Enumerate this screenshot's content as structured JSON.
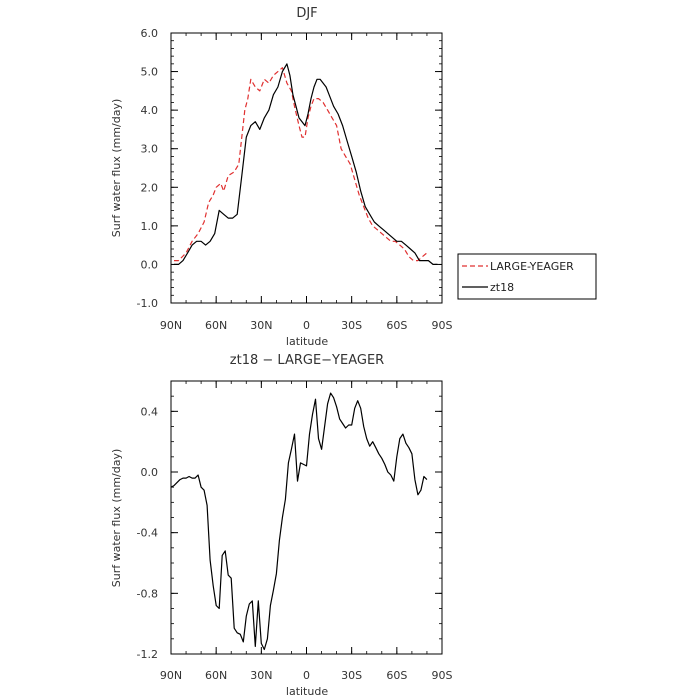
{
  "chart_data": [
    {
      "type": "line",
      "title": "DJF",
      "xlabel": "latitude",
      "ylabel": "Surf water flux (mm/day)",
      "xlim": [
        90,
        -90
      ],
      "ylim": [
        -1.0,
        6.0
      ],
      "x_ticks": [
        "90N",
        "60N",
        "30N",
        "0",
        "30S",
        "60S",
        "90S"
      ],
      "y_ticks": [
        "-1.0",
        "0.0",
        "1.0",
        "2.0",
        "3.0",
        "4.0",
        "5.0",
        "6.0"
      ],
      "legend_position": "right",
      "series": [
        {
          "name": "LARGE-YEAGER",
          "color": "#e03030",
          "dash": "dashed",
          "x": [
            88,
            85,
            80,
            76,
            72,
            68,
            65,
            62,
            60,
            57,
            55,
            52,
            48,
            45,
            43,
            41,
            39,
            37,
            34,
            31,
            28,
            25,
            22,
            19,
            16,
            13,
            10,
            8,
            5,
            3,
            1,
            -1,
            -3,
            -5,
            -8,
            -11,
            -14,
            -17,
            -20,
            -23,
            -26,
            -29,
            -32,
            -35,
            -38,
            -41,
            -44,
            -47,
            -50,
            -53,
            -56,
            -59,
            -62,
            -65,
            -68,
            -71,
            -74,
            -77,
            -80
          ],
          "y": [
            0.1,
            0.1,
            0.3,
            0.6,
            0.8,
            1.1,
            1.6,
            1.8,
            2.0,
            2.1,
            1.9,
            2.3,
            2.4,
            2.6,
            3.3,
            4.0,
            4.3,
            4.8,
            4.6,
            4.5,
            4.8,
            4.7,
            4.9,
            5.0,
            5.1,
            4.7,
            4.5,
            4.1,
            3.6,
            3.3,
            3.3,
            3.8,
            4.1,
            4.3,
            4.3,
            4.2,
            4.0,
            3.8,
            3.6,
            3.0,
            2.8,
            2.6,
            2.2,
            1.8,
            1.5,
            1.2,
            1.0,
            0.9,
            0.8,
            0.7,
            0.6,
            0.6,
            0.5,
            0.4,
            0.2,
            0.1,
            0.1,
            0.2,
            0.3
          ]
        },
        {
          "name": "zt18",
          "color": "#000000",
          "dash": "solid",
          "x": [
            88,
            85,
            82,
            79,
            76,
            73,
            70,
            67,
            64,
            61,
            58,
            55,
            52,
            49,
            46,
            43,
            40,
            37,
            34,
            31,
            28,
            25,
            22,
            19,
            16,
            13,
            11,
            9,
            7,
            5,
            3,
            1,
            -1,
            -3,
            -5,
            -7,
            -9,
            -11,
            -13,
            -15,
            -18,
            -21,
            -24,
            -27,
            -30,
            -33,
            -36,
            -39,
            -42,
            -45,
            -48,
            -51,
            -54,
            -57,
            -60,
            -63,
            -66,
            -69,
            -72,
            -75,
            -78,
            -81,
            -84,
            -87
          ],
          "y": [
            0.0,
            0.0,
            0.1,
            0.3,
            0.5,
            0.6,
            0.6,
            0.5,
            0.6,
            0.8,
            1.4,
            1.3,
            1.2,
            1.2,
            1.3,
            2.3,
            3.3,
            3.6,
            3.7,
            3.5,
            3.8,
            4.0,
            4.4,
            4.6,
            5.0,
            5.2,
            4.9,
            4.4,
            4.1,
            3.8,
            3.7,
            3.6,
            3.9,
            4.3,
            4.6,
            4.8,
            4.8,
            4.7,
            4.6,
            4.4,
            4.1,
            3.9,
            3.6,
            3.2,
            2.8,
            2.4,
            1.9,
            1.5,
            1.3,
            1.1,
            1.0,
            0.9,
            0.8,
            0.7,
            0.6,
            0.6,
            0.5,
            0.4,
            0.3,
            0.1,
            0.1,
            0.1,
            0.0,
            0.0
          ]
        }
      ]
    },
    {
      "type": "line",
      "title": "zt18 − LARGE−YEAGER",
      "xlabel": "latitude",
      "ylabel": "Surf water flux (mm/day)",
      "xlim": [
        90,
        -90
      ],
      "ylim": [
        -1.2,
        0.6
      ],
      "x_ticks": [
        "90N",
        "60N",
        "30N",
        "0",
        "30S",
        "60S",
        "90S"
      ],
      "y_ticks": [
        "-1.2",
        "-0.8",
        "-0.4",
        "0.0",
        "0.4"
      ],
      "series": [
        {
          "color": "#000000",
          "x": [
            90,
            88,
            86,
            84,
            82,
            80,
            78,
            76,
            74,
            72,
            70,
            68,
            66,
            64,
            62,
            60,
            58,
            56,
            54,
            52,
            50,
            48,
            46,
            44,
            42,
            40,
            38,
            36,
            34,
            32,
            30,
            28,
            26,
            24,
            22,
            20,
            18,
            16,
            14,
            12,
            10,
            8,
            6,
            4,
            2,
            0,
            -2,
            -4,
            -6,
            -8,
            -10,
            -12,
            -14,
            -16,
            -18,
            -20,
            -22,
            -24,
            -26,
            -28,
            -30,
            -32,
            -34,
            -36,
            -38,
            -40,
            -42,
            -44,
            -46,
            -48,
            -50,
            -52,
            -54,
            -56,
            -58,
            -60,
            -62,
            -64,
            -66,
            -68,
            -70,
            -72,
            -74,
            -76,
            -78,
            -80
          ],
          "y": [
            -0.1,
            -0.09,
            -0.07,
            -0.05,
            -0.04,
            -0.04,
            -0.03,
            -0.04,
            -0.04,
            -0.02,
            -0.1,
            -0.12,
            -0.22,
            -0.58,
            -0.75,
            -0.88,
            -0.9,
            -0.55,
            -0.52,
            -0.68,
            -0.7,
            -1.03,
            -1.06,
            -1.07,
            -1.12,
            -0.95,
            -0.87,
            -0.85,
            -1.15,
            -0.85,
            -1.13,
            -1.17,
            -1.1,
            -0.88,
            -0.78,
            -0.67,
            -0.45,
            -0.3,
            -0.18,
            0.06,
            0.15,
            0.25,
            -0.06,
            0.06,
            0.05,
            0.04,
            0.25,
            0.38,
            0.48,
            0.22,
            0.15,
            0.3,
            0.45,
            0.52,
            0.49,
            0.43,
            0.35,
            0.32,
            0.29,
            0.31,
            0.31,
            0.42,
            0.47,
            0.42,
            0.3,
            0.22,
            0.17,
            0.2,
            0.16,
            0.12,
            0.09,
            0.05,
            0.0,
            -0.02,
            -0.06,
            0.1,
            0.22,
            0.25,
            0.19,
            0.16,
            0.12,
            -0.05,
            -0.15,
            -0.12,
            -0.03,
            -0.05
          ]
        }
      ]
    }
  ]
}
